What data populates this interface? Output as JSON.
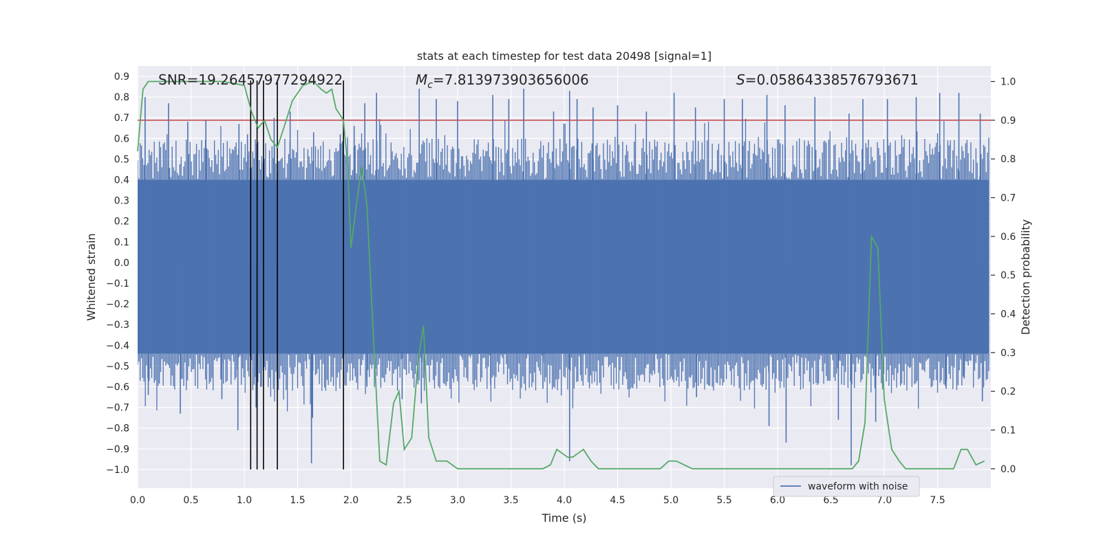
{
  "chart_data": {
    "type": "line",
    "title": "stats at each timestep for test data 20498 [signal=1]",
    "xlabel": "Time (s)",
    "ylabel": "Whitened strain",
    "y2label": "Detection probability",
    "xlim": [
      0.0,
      8.0
    ],
    "ylim": [
      -1.09,
      0.95
    ],
    "y2lim": [
      -0.05,
      1.04
    ],
    "xticks": [
      0.0,
      0.5,
      1.0,
      1.5,
      2.0,
      2.5,
      3.0,
      3.5,
      4.0,
      4.5,
      5.0,
      5.5,
      6.0,
      6.5,
      7.0,
      7.5
    ],
    "xtick_labels": [
      "0.0",
      "0.5",
      "1.0",
      "1.5",
      "2.0",
      "2.5",
      "3.0",
      "3.5",
      "4.0",
      "4.5",
      "5.0",
      "5.5",
      "6.0",
      "6.5",
      "7.0",
      "7.5"
    ],
    "yticks": [
      0.9,
      0.8,
      0.7,
      0.6,
      0.5,
      0.4,
      0.3,
      0.2,
      0.1,
      0.0,
      -0.1,
      -0.2,
      -0.3,
      -0.4,
      -0.5,
      -0.6,
      -0.7,
      -0.8,
      -0.9,
      -1.0
    ],
    "ytick_labels": [
      "0.9",
      "0.8",
      "0.7",
      "0.6",
      "0.5",
      "0.4",
      "0.3",
      "0.2",
      "0.1",
      "0.0",
      "−0.1",
      "−0.2",
      "−0.3",
      "−0.4",
      "−0.5",
      "−0.6",
      "−0.7",
      "−0.8",
      "−0.9",
      "−1.0"
    ],
    "y2ticks": [
      1.0,
      0.9,
      0.8,
      0.7,
      0.6,
      0.5,
      0.4,
      0.3,
      0.2,
      0.1,
      0.0
    ],
    "y2tick_labels": [
      "1.0",
      "0.9",
      "0.8",
      "0.7",
      "0.6",
      "0.5",
      "0.4",
      "0.3",
      "0.2",
      "0.1",
      "0.0"
    ],
    "annotations": {
      "snr": "SNR=19.26457977294922",
      "mc_symbol": "M",
      "mc_sub": "c",
      "mc_value": "=7.813973903656006",
      "s_symbol": "S",
      "s_value": "=0.05864338576793671"
    },
    "legend": {
      "label": "waveform with noise",
      "loc": "lower right"
    },
    "threshold": 0.9,
    "event_lines_x": [
      1.06,
      1.12,
      1.18,
      1.31,
      1.93
    ],
    "event_lines_range": [
      -1.0,
      0.88
    ],
    "waveform": {
      "name": "waveform with noise",
      "band_core": [
        -0.44,
        0.4
      ],
      "spikes_up": [
        [
          0.07,
          0.8
        ],
        [
          0.29,
          0.77
        ],
        [
          0.47,
          0.68
        ],
        [
          0.64,
          0.69
        ],
        [
          0.95,
          0.67
        ],
        [
          1.03,
          0.62
        ],
        [
          1.28,
          0.7
        ],
        [
          1.43,
          0.73
        ],
        [
          1.65,
          0.63
        ],
        [
          1.9,
          0.62
        ],
        [
          2.03,
          0.66
        ],
        [
          2.13,
          0.77
        ],
        [
          2.24,
          0.82
        ],
        [
          2.64,
          0.84
        ],
        [
          2.8,
          0.79
        ],
        [
          3.0,
          0.78
        ],
        [
          3.33,
          0.81
        ],
        [
          3.48,
          0.79
        ],
        [
          3.62,
          0.84
        ],
        [
          3.9,
          0.73
        ],
        [
          4.05,
          0.83
        ],
        [
          4.12,
          0.79
        ],
        [
          4.27,
          0.75
        ],
        [
          4.5,
          0.76
        ],
        [
          4.77,
          0.73
        ],
        [
          5.03,
          0.82
        ],
        [
          5.23,
          0.75
        ],
        [
          5.5,
          0.79
        ],
        [
          5.67,
          0.79
        ],
        [
          5.9,
          0.81
        ],
        [
          6.07,
          0.76
        ],
        [
          6.35,
          0.8
        ],
        [
          6.67,
          0.72
        ],
        [
          6.8,
          0.79
        ],
        [
          7.03,
          0.79
        ],
        [
          7.3,
          0.8
        ],
        [
          7.52,
          0.82
        ],
        [
          7.7,
          0.82
        ],
        [
          7.9,
          0.72
        ]
      ],
      "spikes_down": [
        [
          0.1,
          -0.64
        ],
        [
          0.4,
          -0.73
        ],
        [
          0.79,
          -0.66
        ],
        [
          0.94,
          -0.81
        ],
        [
          1.11,
          -0.7
        ],
        [
          1.64,
          -0.75
        ],
        [
          1.63,
          -0.97
        ],
        [
          2.15,
          -0.6
        ],
        [
          2.48,
          -0.66
        ],
        [
          2.66,
          -0.68
        ],
        [
          3.31,
          -0.59
        ],
        [
          3.8,
          -0.61
        ],
        [
          4.05,
          -0.96
        ],
        [
          5.24,
          -0.65
        ],
        [
          5.92,
          -0.79
        ],
        [
          6.08,
          -0.87
        ],
        [
          6.57,
          -0.76
        ],
        [
          6.69,
          -0.98
        ],
        [
          6.92,
          -0.77
        ],
        [
          7.58,
          -0.61
        ],
        [
          7.75,
          -0.56
        ],
        [
          7.92,
          -0.67
        ]
      ]
    },
    "detection_probability": {
      "x": [
        0.0,
        0.05,
        0.1,
        0.2,
        0.5,
        0.8,
        1.0,
        1.07,
        1.13,
        1.19,
        1.25,
        1.31,
        1.37,
        1.45,
        1.55,
        1.65,
        1.72,
        1.77,
        1.82,
        1.86,
        1.93,
        1.97,
        2.0,
        2.05,
        2.1,
        2.15,
        2.2,
        2.27,
        2.33,
        2.4,
        2.45,
        2.5,
        2.57,
        2.63,
        2.68,
        2.73,
        2.8,
        2.9,
        3.0,
        3.1,
        3.25,
        3.5,
        3.8,
        3.87,
        3.93,
        3.98,
        4.03,
        4.08,
        4.13,
        4.18,
        4.25,
        4.32,
        4.38,
        4.45,
        4.6,
        4.8,
        4.9,
        4.98,
        5.05,
        5.2,
        5.35,
        5.5,
        5.8,
        6.2,
        6.6,
        6.7,
        6.76,
        6.82,
        6.88,
        6.94,
        7.0,
        7.07,
        7.14,
        7.2,
        7.3,
        7.4,
        7.55,
        7.6,
        7.65,
        7.72,
        7.78,
        7.86,
        7.94
      ],
      "y": [
        0.82,
        0.98,
        1.0,
        1.0,
        1.0,
        1.0,
        0.99,
        0.92,
        0.88,
        0.9,
        0.85,
        0.83,
        0.88,
        0.95,
        0.99,
        1.0,
        0.98,
        0.97,
        0.98,
        0.93,
        0.9,
        0.78,
        0.57,
        0.68,
        0.78,
        0.68,
        0.4,
        0.02,
        0.01,
        0.17,
        0.2,
        0.05,
        0.08,
        0.28,
        0.37,
        0.08,
        0.02,
        0.02,
        0.0,
        0.0,
        0.0,
        0.0,
        0.0,
        0.01,
        0.05,
        0.04,
        0.03,
        0.03,
        0.04,
        0.05,
        0.02,
        0.0,
        0.0,
        0.0,
        0.0,
        0.0,
        0.0,
        0.02,
        0.02,
        0.0,
        0.0,
        0.0,
        0.0,
        0.0,
        0.0,
        0.0,
        0.02,
        0.12,
        0.6,
        0.57,
        0.18,
        0.05,
        0.02,
        0.0,
        0.0,
        0.0,
        0.0,
        0.0,
        0.0,
        0.05,
        0.05,
        0.01,
        0.02
      ]
    },
    "colors": {
      "axes_bg": "#eaeaf2",
      "grid": "#ffffff",
      "waveform": "#4c72b0",
      "probability": "#55a868",
      "threshold": "#c44e52",
      "event_lines": "#000000",
      "text": "#262626"
    }
  }
}
